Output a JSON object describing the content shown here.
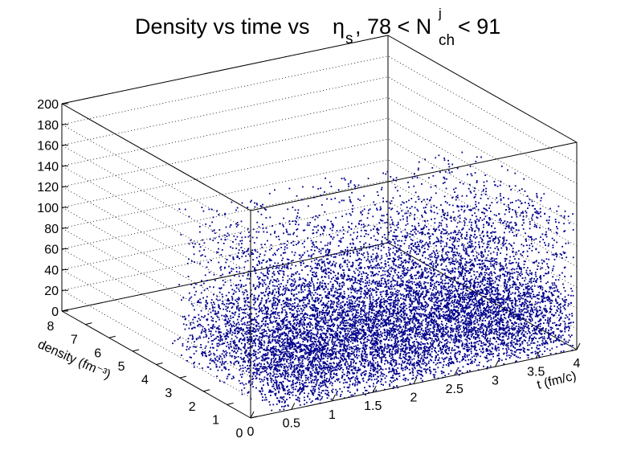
{
  "chart_data": {
    "type": "scatter",
    "dimensions": 3,
    "title": {
      "main": "Density vs time vs ",
      "eta": "η",
      "eta_sub": "s",
      "cut_prefix": ", 78 < N",
      "n_sub": "ch",
      "n_sup": "j",
      "cut_suffix": " < 91"
    },
    "x_axis": {
      "label": "t (fm/c)",
      "range": [
        0,
        4
      ],
      "tick_labels": [
        "0",
        "0.5",
        "1",
        "1.5",
        "2",
        "2.5",
        "3",
        "3.5",
        "4"
      ]
    },
    "y_axis": {
      "label": "density (fm⁻³)",
      "range": [
        0,
        8
      ],
      "tick_labels": [
        "0",
        "1",
        "2",
        "3",
        "4",
        "5",
        "6",
        "7",
        "8"
      ]
    },
    "z_axis": {
      "label": "",
      "range": [
        0,
        200
      ],
      "tick_labels": [
        "0",
        "20",
        "40",
        "60",
        "80",
        "100",
        "120",
        "140",
        "160",
        "180",
        "200"
      ]
    },
    "grid": true,
    "marker_color": "#00008b",
    "distribution": {
      "t_columns": [
        0.3,
        0.35,
        0.4,
        0.45,
        0.5,
        0.55,
        0.6,
        0.65,
        0.7,
        0.75,
        0.8,
        0.85,
        0.9,
        0.95,
        1.0,
        1.05,
        1.1,
        1.15,
        1.2,
        1.25,
        1.3,
        1.35,
        1.4,
        1.45,
        1.5,
        1.55,
        1.6,
        1.65,
        1.7,
        1.75,
        1.8,
        1.85,
        1.9,
        1.95,
        2.0,
        2.05,
        2.1,
        2.15,
        2.2,
        2.25,
        2.3,
        2.35,
        2.4,
        2.45,
        2.5,
        2.55,
        2.6,
        2.65,
        2.7,
        2.75,
        2.8,
        2.85,
        2.9,
        2.95,
        3.0,
        3.05,
        3.1,
        3.15,
        3.2,
        3.25,
        3.3,
        3.35,
        3.4,
        3.45,
        3.5,
        3.55,
        3.6,
        3.65,
        3.7,
        3.75,
        3.8,
        3.85,
        3.9,
        3.95
      ],
      "density_range": [
        0,
        8
      ],
      "eta_range": [
        0,
        150
      ],
      "dense_below_eta": 60
    }
  }
}
